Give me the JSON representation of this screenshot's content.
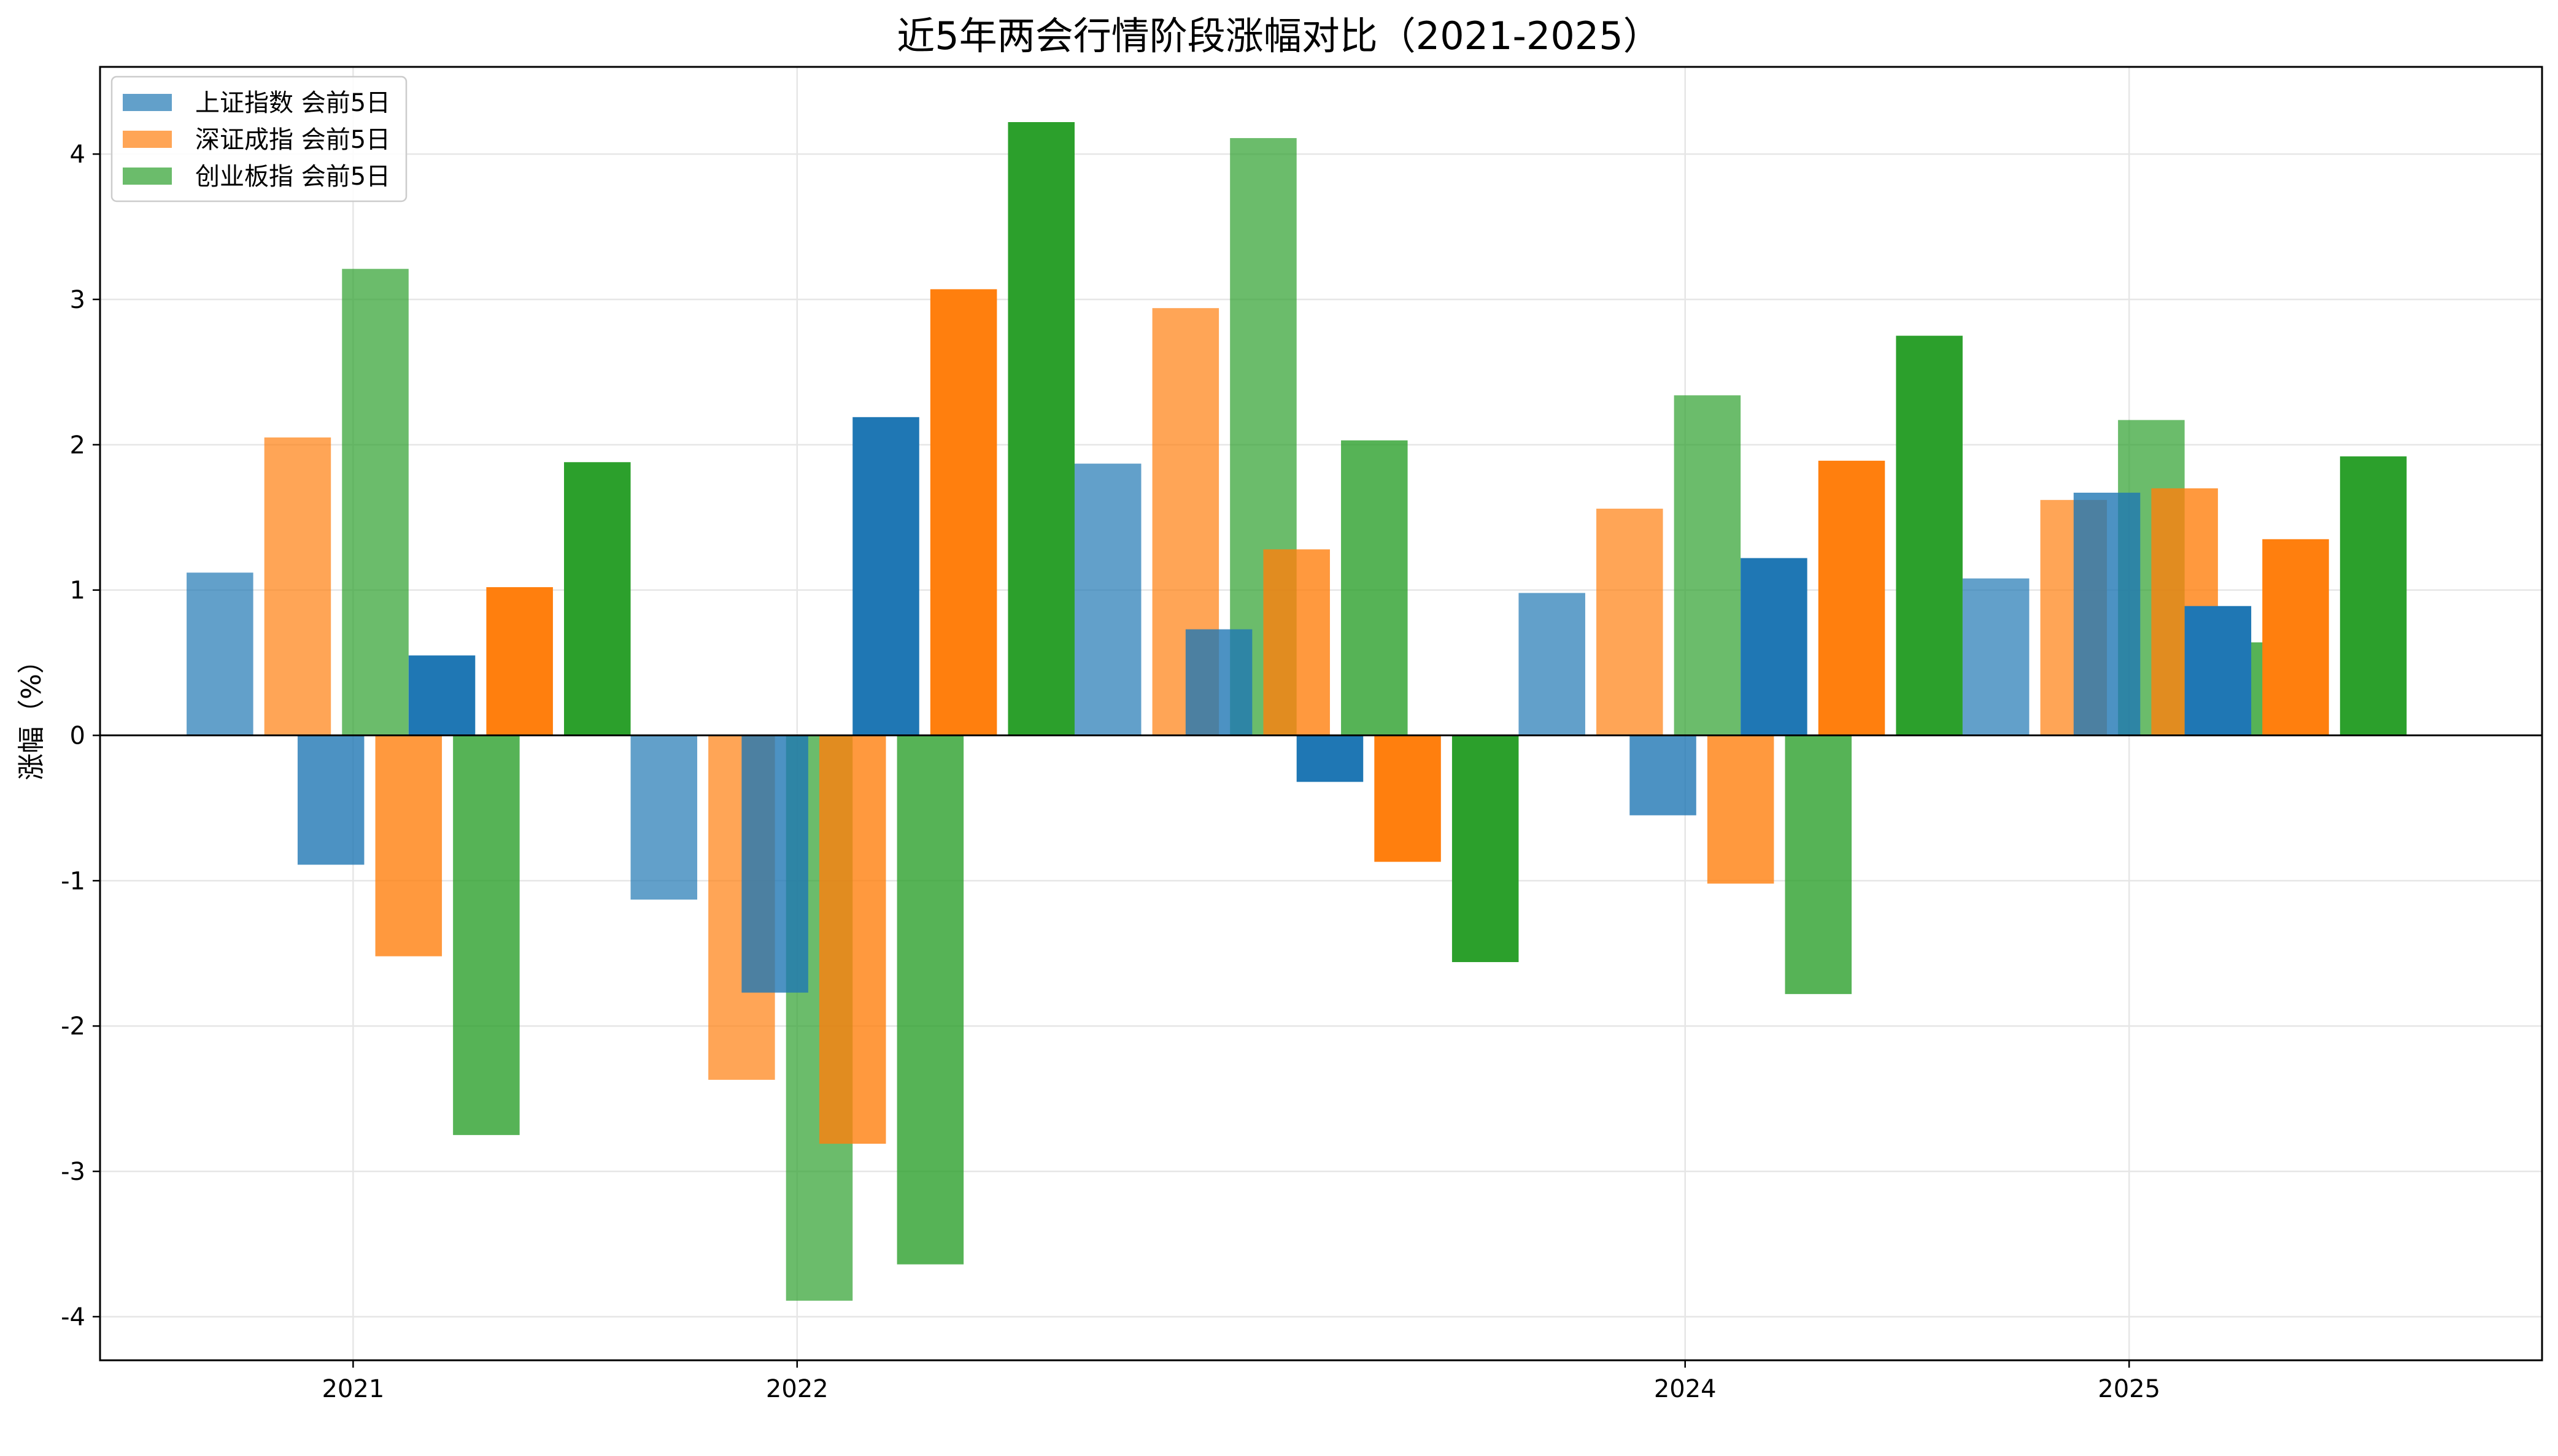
{
  "chart_data": {
    "type": "bar",
    "title": "近5年两会行情阶段涨幅对比（2021-2025）",
    "xlabel": "",
    "ylabel": "涨幅（%）",
    "ylim": [
      -4.3,
      4.6
    ],
    "yticks": [
      -4,
      -3,
      -2,
      -1,
      0,
      1,
      2,
      3,
      4
    ],
    "xlim": [
      2020.43,
      2025.93
    ],
    "xticks": [
      2021,
      2022,
      2024,
      2025
    ],
    "xtick_labels": [
      "2021",
      "2022",
      "2024",
      "2025"
    ],
    "grid": true,
    "legend_position": "top-left",
    "colors": {
      "上证指数": "#1f77b4",
      "深证成指": "#ff7f0e",
      "创业板指": "#2ca02c"
    },
    "legend": [
      {
        "name": "上证指数 会前5日",
        "color": "#1f77b4"
      },
      {
        "name": "深证成指 会前5日",
        "color": "#ff7f0e"
      },
      {
        "name": "创业板指 会前5日",
        "color": "#2ca02c"
      }
    ],
    "bars": [
      {
        "series": "上证指数",
        "x": 2020.7,
        "value": 1.12,
        "opacity": 0.7
      },
      {
        "series": "深证成指",
        "x": 2020.875,
        "value": 2.05,
        "opacity": 0.7
      },
      {
        "series": "创业板指",
        "x": 2021.05,
        "value": 3.21,
        "opacity": 0.7
      },
      {
        "series": "上证指数",
        "x": 2020.95,
        "value": -0.89,
        "opacity": 0.8
      },
      {
        "series": "深证成指",
        "x": 2021.125,
        "value": -1.52,
        "opacity": 0.8
      },
      {
        "series": "创业板指",
        "x": 2021.3,
        "value": -2.75,
        "opacity": 0.8
      },
      {
        "series": "上证指数",
        "x": 2021.2,
        "value": 0.55,
        "opacity": 1.0
      },
      {
        "series": "深证成指",
        "x": 2021.375,
        "value": 1.02,
        "opacity": 1.0
      },
      {
        "series": "创业板指",
        "x": 2021.55,
        "value": 1.88,
        "opacity": 1.0
      },
      {
        "series": "上证指数",
        "x": 2021.7,
        "value": -1.13,
        "opacity": 0.7
      },
      {
        "series": "深证成指",
        "x": 2021.875,
        "value": -2.37,
        "opacity": 0.7
      },
      {
        "series": "创业板指",
        "x": 2022.05,
        "value": -3.89,
        "opacity": 0.7
      },
      {
        "series": "上证指数",
        "x": 2021.95,
        "value": -1.77,
        "opacity": 0.8
      },
      {
        "series": "深证成指",
        "x": 2022.125,
        "value": -2.81,
        "opacity": 0.8
      },
      {
        "series": "创业板指",
        "x": 2022.3,
        "value": -3.64,
        "opacity": 0.8
      },
      {
        "series": "上证指数",
        "x": 2022.2,
        "value": 2.19,
        "opacity": 1.0
      },
      {
        "series": "深证成指",
        "x": 2022.375,
        "value": 3.07,
        "opacity": 1.0
      },
      {
        "series": "创业板指",
        "x": 2022.55,
        "value": 4.22,
        "opacity": 1.0
      },
      {
        "series": "上证指数",
        "x": 2022.7,
        "value": 1.87,
        "opacity": 0.7
      },
      {
        "series": "深证成指",
        "x": 2022.875,
        "value": 2.94,
        "opacity": 0.7
      },
      {
        "series": "创业板指",
        "x": 2023.05,
        "value": 4.11,
        "opacity": 0.7
      },
      {
        "series": "上证指数",
        "x": 2022.95,
        "value": 0.73,
        "opacity": 0.8
      },
      {
        "series": "深证成指",
        "x": 2023.125,
        "value": 1.28,
        "opacity": 0.8
      },
      {
        "series": "创业板指",
        "x": 2023.3,
        "value": 2.03,
        "opacity": 0.8
      },
      {
        "series": "上证指数",
        "x": 2023.2,
        "value": -0.32,
        "opacity": 1.0
      },
      {
        "series": "深证成指",
        "x": 2023.375,
        "value": -0.87,
        "opacity": 1.0
      },
      {
        "series": "创业板指",
        "x": 2023.55,
        "value": -1.56,
        "opacity": 1.0
      },
      {
        "series": "上证指数",
        "x": 2023.7,
        "value": 0.98,
        "opacity": 0.7
      },
      {
        "series": "深证成指",
        "x": 2023.875,
        "value": 1.56,
        "opacity": 0.7
      },
      {
        "series": "创业板指",
        "x": 2024.05,
        "value": 2.34,
        "opacity": 0.7
      },
      {
        "series": "上证指数",
        "x": 2023.95,
        "value": -0.55,
        "opacity": 0.8
      },
      {
        "series": "深证成指",
        "x": 2024.125,
        "value": -1.02,
        "opacity": 0.8
      },
      {
        "series": "创业板指",
        "x": 2024.3,
        "value": -1.78,
        "opacity": 0.8
      },
      {
        "series": "上证指数",
        "x": 2024.2,
        "value": 1.22,
        "opacity": 1.0
      },
      {
        "series": "深证成指",
        "x": 2024.375,
        "value": 1.89,
        "opacity": 1.0
      },
      {
        "series": "创业板指",
        "x": 2024.55,
        "value": 2.75,
        "opacity": 1.0
      },
      {
        "series": "上证指数",
        "x": 2024.7,
        "value": 1.08,
        "opacity": 0.7
      },
      {
        "series": "深证成指",
        "x": 2024.875,
        "value": 1.62,
        "opacity": 0.7
      },
      {
        "series": "创业板指",
        "x": 2025.05,
        "value": 2.17,
        "opacity": 0.7
      },
      {
        "series": "上证指数",
        "x": 2024.95,
        "value": 1.67,
        "opacity": 0.8
      },
      {
        "series": "深证成指",
        "x": 2025.125,
        "value": 1.7,
        "opacity": 0.8
      },
      {
        "series": "创业板指",
        "x": 2025.3,
        "value": 0.64,
        "opacity": 0.8
      },
      {
        "series": "上证指数",
        "x": 2025.2,
        "value": 0.89,
        "opacity": 1.0
      },
      {
        "series": "深证成指",
        "x": 2025.375,
        "value": 1.35,
        "opacity": 1.0
      },
      {
        "series": "创业板指",
        "x": 2025.55,
        "value": 1.92,
        "opacity": 1.0
      }
    ]
  }
}
